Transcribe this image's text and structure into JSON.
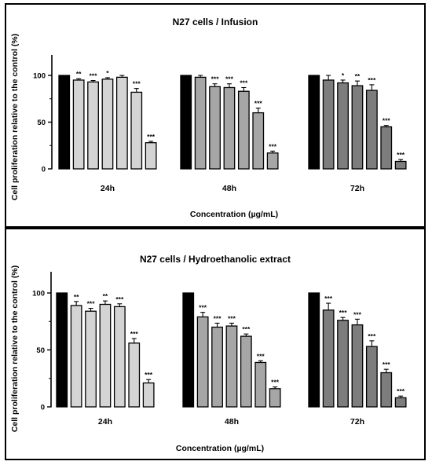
{
  "colors": {
    "control": "#000000",
    "h24": "#d4d4d4",
    "h48": "#a6a6a6",
    "h72": "#7d7d7d"
  },
  "chart_data": [
    {
      "type": "bar",
      "title": "N27 cells  / Infusion",
      "xlabel": "Concentration (µg/mL)",
      "ylabel": "Cell proliferation relative to the control (%)",
      "ylim": [
        0,
        120
      ],
      "yticks": [
        0,
        50,
        100
      ],
      "categories": [
        "24h",
        "48h",
        "72h"
      ],
      "groups": [
        {
          "label": "24h",
          "values": [
            100,
            95,
            93,
            96,
            98,
            82,
            28
          ],
          "errors": [
            0,
            1.5,
            1.5,
            1.5,
            2,
            4,
            1.5
          ],
          "sig": [
            "",
            "**",
            "***",
            "*",
            "",
            "***",
            "***"
          ]
        },
        {
          "label": "48h",
          "values": [
            100,
            98,
            88,
            87,
            83,
            60,
            17
          ],
          "errors": [
            0,
            2,
            3,
            4,
            4,
            5,
            2
          ],
          "sig": [
            "",
            "",
            "***",
            "***",
            "***",
            "***",
            "***"
          ]
        },
        {
          "label": "72h",
          "values": [
            100,
            95,
            92,
            89,
            84,
            45,
            8
          ],
          "errors": [
            0,
            5,
            3,
            5,
            6,
            1.5,
            2
          ],
          "sig": [
            "",
            "",
            "*",
            "**",
            "***",
            "***",
            "***"
          ]
        }
      ]
    },
    {
      "type": "bar",
      "title": "N27  cells / Hydroethanolic extract",
      "xlabel": "Concentration (µg/mL)",
      "ylabel": "Cell proliferation relative to the control (%)",
      "ylim": [
        0,
        120
      ],
      "yticks": [
        0,
        50,
        100
      ],
      "categories": [
        "24h",
        "48h",
        "72h"
      ],
      "groups": [
        {
          "label": "24h",
          "values": [
            100,
            89,
            84,
            90,
            88,
            56,
            21
          ],
          "errors": [
            0,
            3.5,
            2.5,
            3,
            2.5,
            4,
            3
          ],
          "sig": [
            "",
            "**",
            "***",
            "**",
            "***",
            "***",
            "***"
          ]
        },
        {
          "label": "48h",
          "values": [
            100,
            79,
            70,
            71,
            62,
            39,
            16
          ],
          "errors": [
            0,
            4,
            3.5,
            2.5,
            2,
            1.5,
            1.5
          ],
          "sig": [
            "",
            "***",
            "***",
            "***",
            "***",
            "***",
            "***"
          ]
        },
        {
          "label": "72h",
          "values": [
            100,
            85,
            76,
            72,
            53,
            30,
            8
          ],
          "errors": [
            0,
            6,
            2.5,
            5,
            5,
            3,
            1.5
          ],
          "sig": [
            "",
            "***",
            "***",
            "***",
            "***",
            "***",
            "***"
          ]
        }
      ]
    }
  ]
}
